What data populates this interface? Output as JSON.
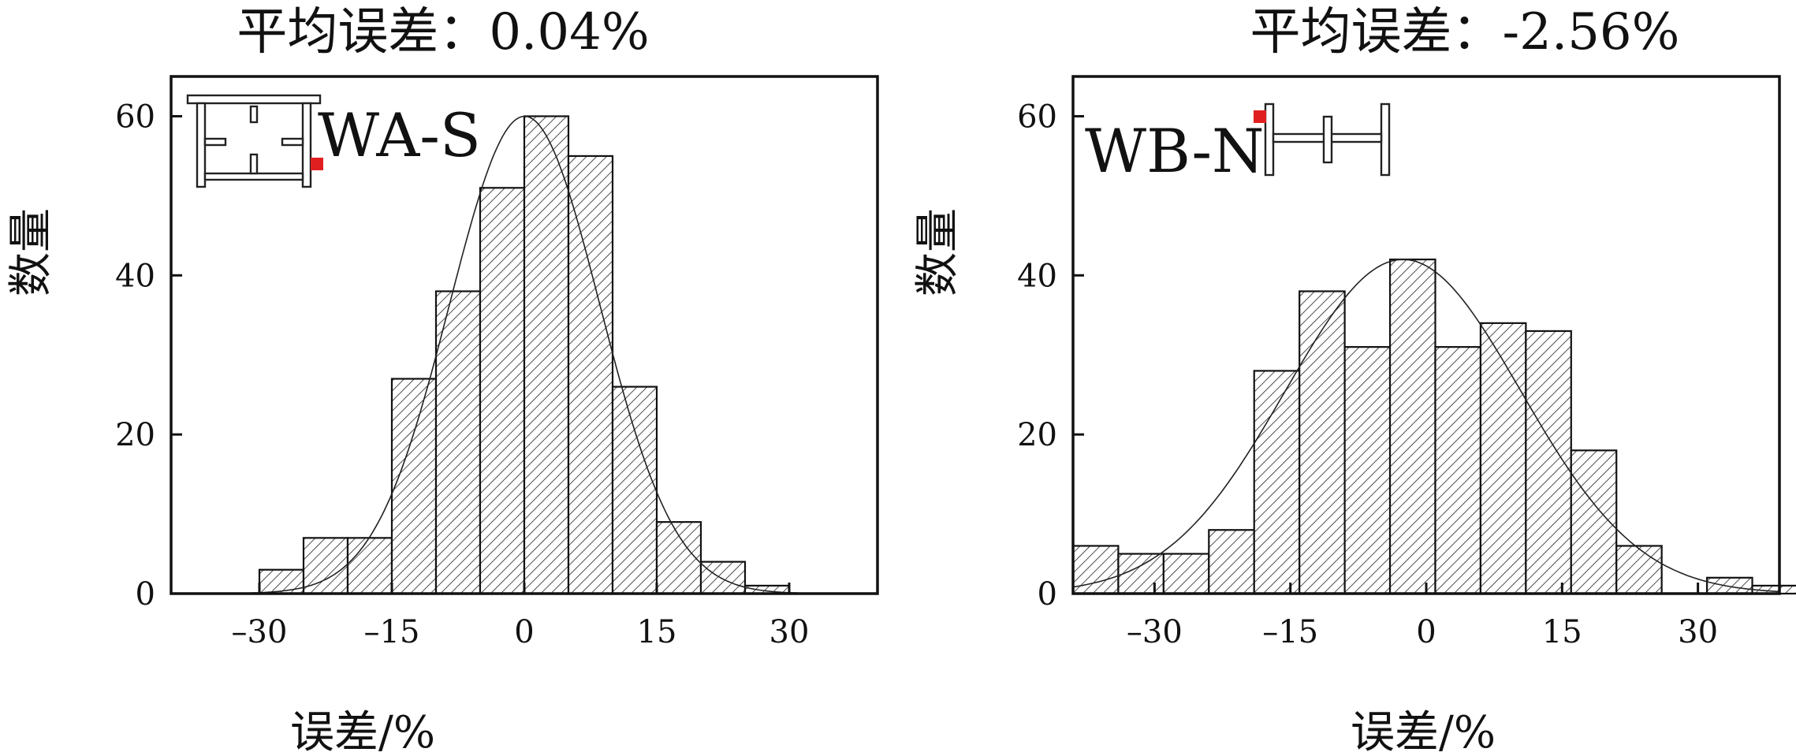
{
  "chart_data": [
    {
      "type": "bar",
      "title": "平均误差：0.04%",
      "label": "WA-S",
      "xlabel": "误差/%",
      "ylabel": "数量",
      "xticks": [
        -30,
        -15,
        0,
        15,
        30
      ],
      "yticks": [
        0,
        20,
        40,
        60
      ],
      "xlim": [
        -40,
        40
      ],
      "ylim": [
        0,
        65
      ],
      "bin_width": 5,
      "bins": [
        {
          "x0": -30,
          "value": 3
        },
        {
          "x0": -25,
          "value": 7
        },
        {
          "x0": -20,
          "value": 7
        },
        {
          "x0": -15,
          "value": 27
        },
        {
          "x0": -10,
          "value": 38
        },
        {
          "x0": -5,
          "value": 51
        },
        {
          "x0": 0,
          "value": 60
        },
        {
          "x0": 5,
          "value": 55
        },
        {
          "x0": 10,
          "value": 26
        },
        {
          "x0": 15,
          "value": 9
        },
        {
          "x0": 20,
          "value": 4
        },
        {
          "x0": 25,
          "value": 1
        }
      ],
      "fit_curve": {
        "type": "normal",
        "mean": 0.04,
        "std": 8.5,
        "peak": 60,
        "x_range": [
          -31,
          31
        ]
      }
    },
    {
      "type": "bar",
      "title": "平均误差：-2.56%",
      "label": "WB-N",
      "xlabel": "误差/%",
      "ylabel": "数量",
      "xticks": [
        -30,
        -15,
        0,
        15,
        30
      ],
      "yticks": [
        0,
        20,
        40,
        60
      ],
      "xlim": [
        -39,
        39
      ],
      "ylim": [
        0,
        65
      ],
      "bin_width": 5,
      "bins": [
        {
          "x0": -39,
          "value": 6
        },
        {
          "x0": -34,
          "value": 5
        },
        {
          "x0": -29,
          "value": 5
        },
        {
          "x0": -24,
          "value": 8
        },
        {
          "x0": -19,
          "value": 28
        },
        {
          "x0": -14,
          "value": 38
        },
        {
          "x0": -9,
          "value": 31
        },
        {
          "x0": -4,
          "value": 42
        },
        {
          "x0": 1,
          "value": 31
        },
        {
          "x0": 6,
          "value": 34
        },
        {
          "x0": 11,
          "value": 33
        },
        {
          "x0": 16,
          "value": 18
        },
        {
          "x0": 21,
          "value": 6
        },
        {
          "x0": 26,
          "value": 0
        },
        {
          "x0": 31,
          "value": 2
        },
        {
          "x0": 36,
          "value": 1
        }
      ],
      "fit_curve": {
        "type": "normal",
        "mean": -2.56,
        "std": 13,
        "peak": 42,
        "x_range": [
          -39,
          39
        ]
      }
    }
  ]
}
